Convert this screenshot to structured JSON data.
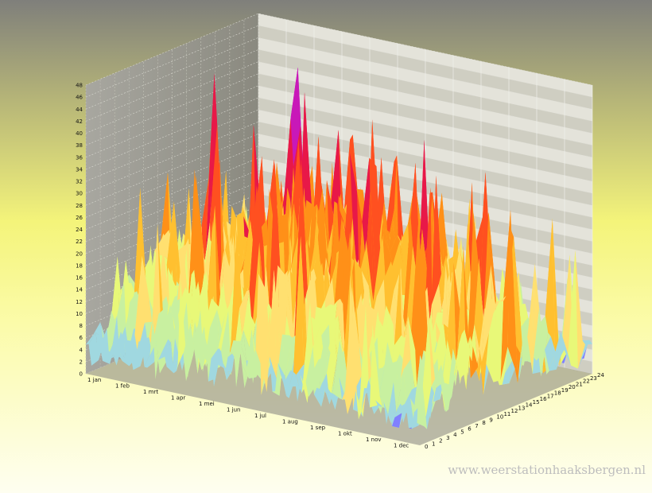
{
  "chart_data": {
    "type": "surface3d",
    "title": "",
    "xlabel": "",
    "ylabel": "",
    "zlabel": "",
    "x_tick_labels": [
      "1 jan",
      "1 feb",
      "1 mrt",
      "1 apr",
      "1 mei",
      "1 jun",
      "1 jul",
      "1 aug",
      "1 sep",
      "1 okt",
      "1 nov",
      "1 dec"
    ],
    "y_tick_labels": [
      "0",
      "1",
      "2",
      "3",
      "4",
      "5",
      "6",
      "7",
      "8",
      "9",
      "10",
      "11",
      "12",
      "13",
      "14",
      "15",
      "16",
      "17",
      "18",
      "19",
      "20",
      "21",
      "22",
      "23",
      "24"
    ],
    "z_tick_labels": [
      "0",
      "2",
      "4",
      "6",
      "8",
      "10",
      "12",
      "14",
      "16",
      "18",
      "20",
      "22",
      "24",
      "26",
      "28",
      "30",
      "32",
      "34",
      "36",
      "38",
      "40",
      "42",
      "44",
      "46",
      "48"
    ],
    "z_range": [
      0,
      48
    ],
    "y_range": [
      0,
      24
    ],
    "grid": true,
    "color_scale": [
      {
        "from": 0,
        "to": 4,
        "color": "#8080ff"
      },
      {
        "from": 4,
        "to": 8,
        "color": "#a0d8e0"
      },
      {
        "from": 8,
        "to": 12,
        "color": "#c8f0a0"
      },
      {
        "from": 12,
        "to": 16,
        "color": "#e8f878"
      },
      {
        "from": 16,
        "to": 20,
        "color": "#ffe070"
      },
      {
        "from": 20,
        "to": 24,
        "color": "#ffc030"
      },
      {
        "from": 24,
        "to": 28,
        "color": "#ff9018"
      },
      {
        "from": 28,
        "to": 34,
        "color": "#ff5020"
      },
      {
        "from": 34,
        "to": 40,
        "color": "#e81848"
      },
      {
        "from": 40,
        "to": 48,
        "color": "#c818b8"
      }
    ],
    "peaks": [
      {
        "date": "1 feb",
        "hour": 14,
        "value": 44
      },
      {
        "date": "1 mei",
        "hour": 14,
        "value": 48
      },
      {
        "date": "1 mei",
        "hour": 13,
        "value": 40
      },
      {
        "date": "1 jun",
        "hour": 13,
        "value": 38
      },
      {
        "date": "1 aug",
        "hour": 14,
        "value": 36
      },
      {
        "date": "1 dec",
        "hour": 13,
        "value": 38
      }
    ]
  },
  "watermark": "www.weerstationhaaksbergen.nl"
}
